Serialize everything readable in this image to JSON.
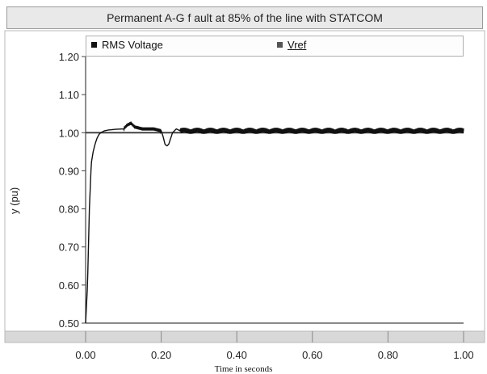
{
  "chart_data": {
    "type": "line",
    "title": "Permanent  A-G f ault at 85% of the line with STATCOM",
    "xlabel": "Time in seconds",
    "ylabel": "y (pu)",
    "xlim": [
      0.0,
      1.0
    ],
    "ylim": [
      0.5,
      1.2
    ],
    "x_ticks": [
      "0.00",
      "0.20",
      "0.40",
      "0.60",
      "0.80",
      "1.00"
    ],
    "y_ticks": [
      "0.50",
      "0.60",
      "0.70",
      "0.80",
      "0.90",
      "1.00",
      "1.10",
      "1.20"
    ],
    "legend_placement": "top",
    "grid": false,
    "series": [
      {
        "name": "RMS Voltage",
        "color": "#111111",
        "x": [
          0.0,
          0.005,
          0.01,
          0.015,
          0.02,
          0.025,
          0.03,
          0.035,
          0.04,
          0.05,
          0.06,
          0.08,
          0.1,
          0.11,
          0.12,
          0.13,
          0.15,
          0.18,
          0.2,
          0.205,
          0.21,
          0.215,
          0.22,
          0.225,
          0.23,
          0.24,
          0.25,
          0.3,
          0.4,
          0.5,
          0.6,
          0.7,
          0.8,
          0.9,
          1.0
        ],
        "y": [
          0.5,
          0.6,
          0.8,
          0.92,
          0.95,
          0.97,
          0.985,
          0.995,
          1.0,
          1.005,
          1.007,
          1.009,
          1.01,
          1.02,
          1.025,
          1.015,
          1.01,
          1.01,
          1.005,
          0.99,
          0.97,
          0.965,
          0.97,
          0.985,
          1.0,
          1.01,
          1.005,
          1.005,
          1.005,
          1.005,
          1.005,
          1.005,
          1.005,
          1.005,
          1.005
        ],
        "ripple": 0.008
      },
      {
        "name": "Vref",
        "color": "#444444",
        "x": [
          0.0,
          1.0
        ],
        "y": [
          1.0,
          1.0
        ]
      }
    ]
  }
}
